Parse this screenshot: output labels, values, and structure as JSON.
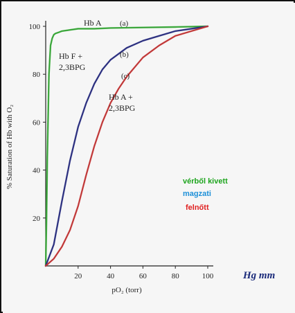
{
  "chart_data": {
    "type": "line",
    "xlabel": "pO₂ (torr)",
    "ylabel": "% Saturation of Hb with O₂",
    "xlim": [
      0,
      100
    ],
    "ylim": [
      0,
      100
    ],
    "x_ticks": [
      "20",
      "40",
      "60",
      "80",
      "100"
    ],
    "y_ticks": [
      "20",
      "40",
      "60",
      "80",
      "100"
    ],
    "grid": false,
    "series": [
      {
        "name": "Hb A",
        "tag": "(a)",
        "color": "#3ab53a",
        "x": [
          0,
          0.5,
          1,
          2,
          3,
          4,
          5,
          6,
          8,
          10,
          15,
          20,
          30,
          40,
          60,
          80,
          100
        ],
        "y": [
          0,
          20,
          45,
          80,
          92,
          95,
          96.5,
          97,
          97.5,
          98,
          98.5,
          99,
          99,
          99.3,
          99.5,
          99.7,
          100
        ]
      },
      {
        "name": "Hb F + 2,3BPG",
        "tag": "(b)",
        "color": "#2a2f8a",
        "x": [
          0,
          5,
          10,
          15,
          20,
          25,
          30,
          35,
          40,
          50,
          60,
          70,
          80,
          90,
          100
        ],
        "y": [
          0,
          9,
          27,
          44,
          58,
          68,
          76,
          82,
          86,
          91,
          94,
          96,
          98,
          99,
          100
        ]
      },
      {
        "name": "Hb A + 2,3BPG",
        "tag": "(c)",
        "color": "#d43a3a",
        "x": [
          0,
          5,
          10,
          15,
          20,
          25,
          30,
          35,
          40,
          45,
          50,
          60,
          70,
          80,
          90,
          100
        ],
        "y": [
          0,
          3,
          8,
          15,
          25,
          38,
          50,
          60,
          68,
          74,
          79,
          87,
          92,
          96,
          98,
          100
        ]
      }
    ]
  },
  "legend_notes": [
    {
      "text": "vérből kivett",
      "color": "#1ea51e"
    },
    {
      "text": "magzati",
      "color": "#1e90d8"
    },
    {
      "text": "felnőtt",
      "color": "#e02020"
    }
  ],
  "handwritten_unit": "Hg mm"
}
